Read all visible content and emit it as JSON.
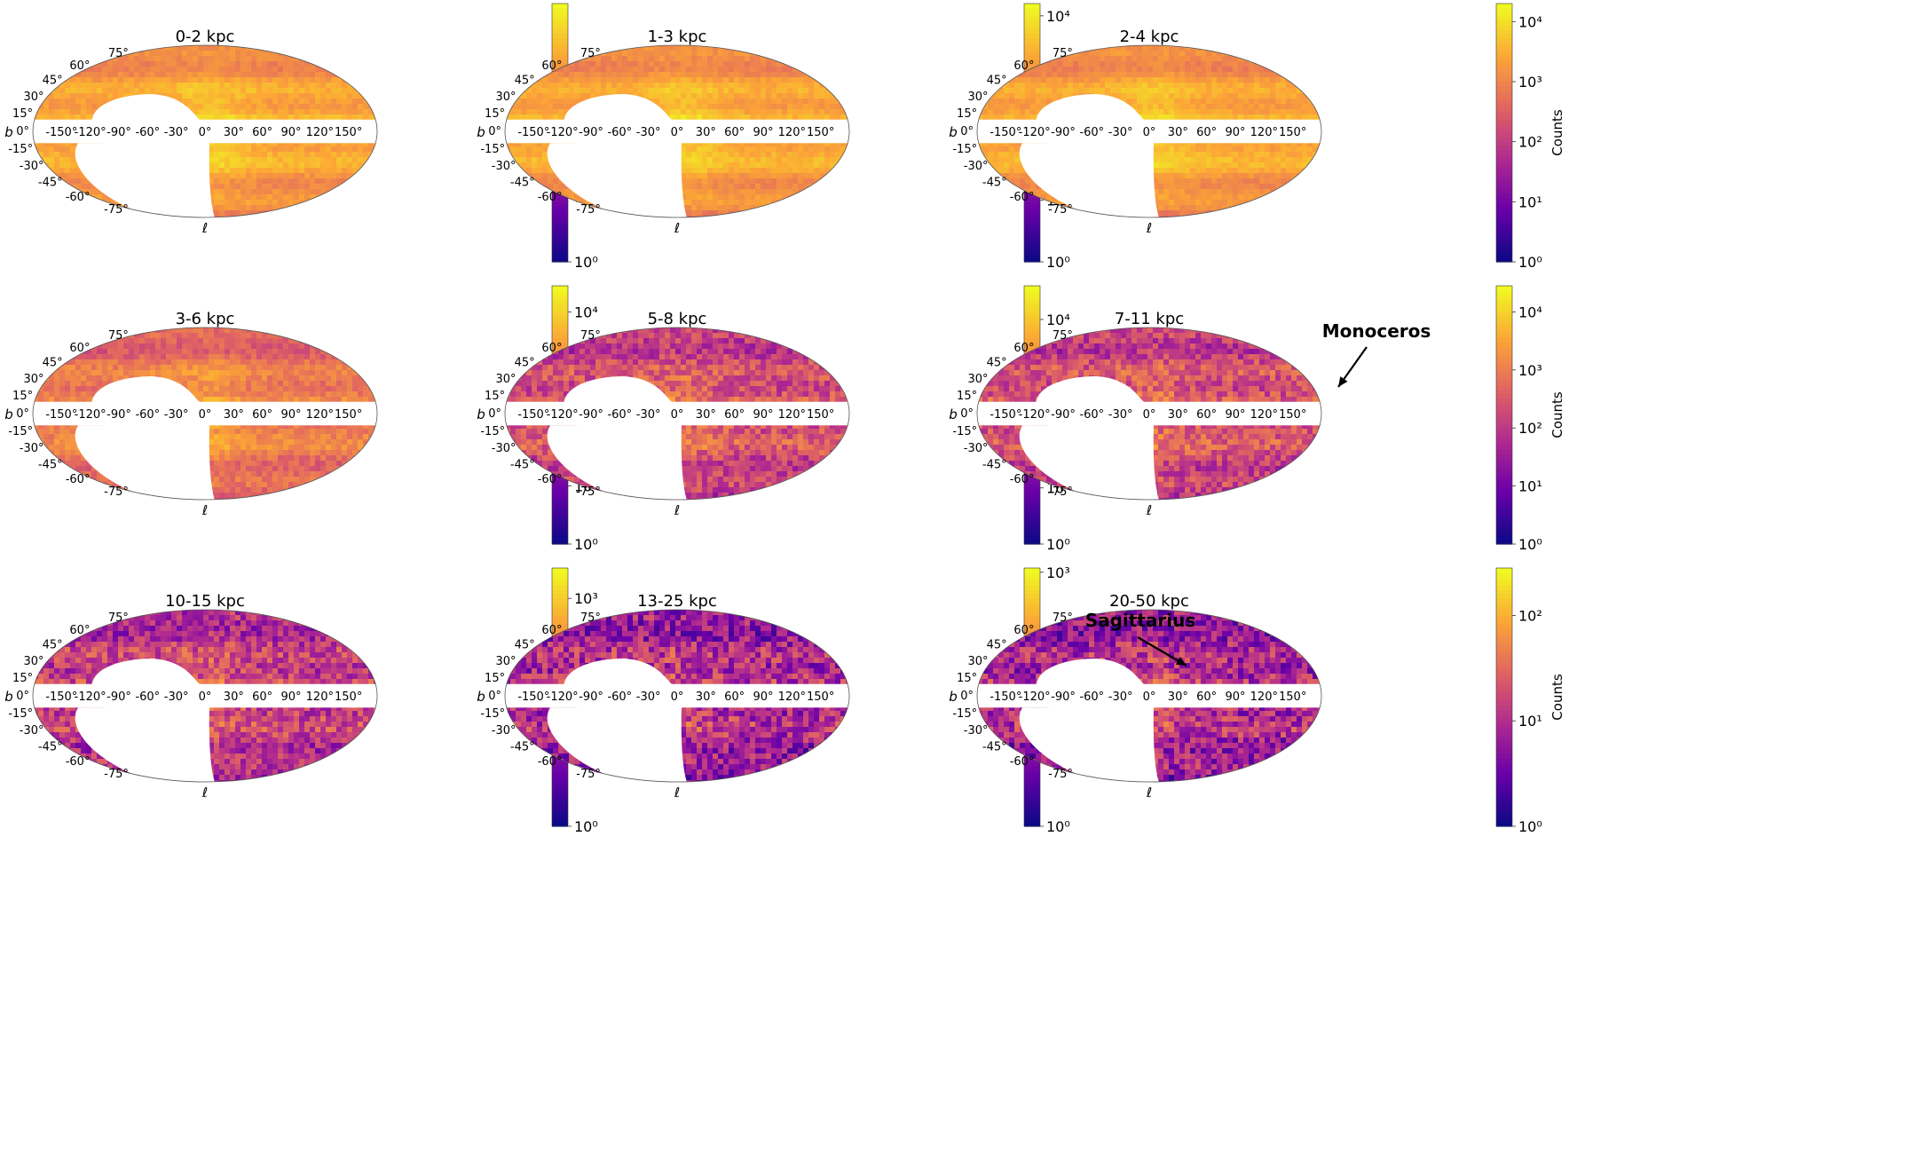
{
  "figure": {
    "colormap": [
      "#0d0887",
      "#6a00a8",
      "#b12a90",
      "#e16462",
      "#fca636",
      "#f0f921"
    ],
    "colorbar_label": "Counts",
    "lon_labels": [
      "-150°",
      "-120°",
      "-90°",
      "-60°",
      "-30°",
      "0°",
      "30°",
      "60°",
      "90°",
      "120°",
      "150°"
    ],
    "lat_labels": [
      "75°",
      "60°",
      "45°",
      "30°",
      "15°",
      "0°",
      "-15°",
      "-30°",
      "-45°",
      "-60°",
      "-75°"
    ],
    "xlabel": "ℓ",
    "ylabel": "b"
  },
  "chart_data": [
    {
      "type": "heatmap",
      "title": "0-2 kpc",
      "projection": "mollweide",
      "log_scale": true,
      "cbar_min_exp": 0,
      "cbar_max_exp": 3.95,
      "cbar_tick_exps": [
        0,
        1,
        2,
        3
      ],
      "cbar_ticks": [
        "10⁰",
        "10¹",
        "10²",
        "10³"
      ],
      "masked_band_deg": [
        -10,
        10
      ],
      "dominant_level": "high",
      "annotation": null
    },
    {
      "type": "heatmap",
      "title": "1-3 kpc",
      "projection": "mollweide",
      "log_scale": true,
      "cbar_min_exp": 0,
      "cbar_max_exp": 4.2,
      "cbar_tick_exps": [
        0,
        1,
        2,
        3,
        4
      ],
      "cbar_ticks": [
        "10⁰",
        "10¹",
        "10²",
        "10³",
        "10⁴"
      ],
      "masked_band_deg": [
        -10,
        10
      ],
      "dominant_level": "high",
      "annotation": null
    },
    {
      "type": "heatmap",
      "title": "2-4 kpc",
      "projection": "mollweide",
      "log_scale": true,
      "cbar_min_exp": 0,
      "cbar_max_exp": 4.3,
      "cbar_tick_exps": [
        0,
        1,
        2,
        3,
        4
      ],
      "cbar_ticks": [
        "10⁰",
        "10¹",
        "10²",
        "10³",
        "10⁴"
      ],
      "masked_band_deg": [
        -10,
        10
      ],
      "dominant_level": "high",
      "annotation": null
    },
    {
      "type": "heatmap",
      "title": "3-6 kpc",
      "projection": "mollweide",
      "log_scale": true,
      "cbar_min_exp": 0,
      "cbar_max_exp": 4.45,
      "cbar_tick_exps": [
        0,
        1,
        2,
        3,
        4
      ],
      "cbar_ticks": [
        "10⁰",
        "10¹",
        "10²",
        "10³",
        "10⁴"
      ],
      "masked_band_deg": [
        -10,
        10
      ],
      "dominant_level": "mid-high",
      "annotation": null
    },
    {
      "type": "heatmap",
      "title": "5-8 kpc",
      "projection": "mollweide",
      "log_scale": true,
      "cbar_min_exp": 0,
      "cbar_max_exp": 4.6,
      "cbar_tick_exps": [
        0,
        1,
        2,
        3,
        4
      ],
      "cbar_ticks": [
        "10⁰",
        "10¹",
        "10²",
        "10³",
        "10⁴"
      ],
      "masked_band_deg": [
        -10,
        10
      ],
      "dominant_level": "mid",
      "annotation": null
    },
    {
      "type": "heatmap",
      "title": "7-11 kpc",
      "projection": "mollweide",
      "log_scale": true,
      "cbar_min_exp": 0,
      "cbar_max_exp": 4.45,
      "cbar_tick_exps": [
        0,
        1,
        2,
        3,
        4
      ],
      "cbar_ticks": [
        "10⁰",
        "10¹",
        "10²",
        "10³",
        "10⁴"
      ],
      "masked_band_deg": [
        -10,
        10
      ],
      "dominant_level": "mid",
      "annotation": {
        "text": "Monoceros"
      }
    },
    {
      "type": "heatmap",
      "title": "10-15 kpc",
      "projection": "mollweide",
      "log_scale": true,
      "cbar_min_exp": 0,
      "cbar_max_exp": 3.4,
      "cbar_tick_exps": [
        0,
        1,
        2,
        3
      ],
      "cbar_ticks": [
        "10⁰",
        "10¹",
        "10²",
        "10³"
      ],
      "masked_band_deg": [
        -10,
        10
      ],
      "dominant_level": "mid-low",
      "annotation": null
    },
    {
      "type": "heatmap",
      "title": "13-25 kpc",
      "projection": "mollweide",
      "log_scale": true,
      "cbar_min_exp": 0,
      "cbar_max_exp": 3.05,
      "cbar_tick_exps": [
        0,
        1,
        2,
        3
      ],
      "cbar_ticks": [
        "10⁰",
        "10¹",
        "10²",
        "10³"
      ],
      "masked_band_deg": [
        -10,
        10
      ],
      "dominant_level": "low",
      "annotation": null
    },
    {
      "type": "heatmap",
      "title": "20-50 kpc",
      "projection": "mollweide",
      "log_scale": true,
      "cbar_min_exp": 0,
      "cbar_max_exp": 2.45,
      "cbar_tick_exps": [
        0,
        1,
        2
      ],
      "cbar_ticks": [
        "10⁰",
        "10¹",
        "10²"
      ],
      "masked_band_deg": [
        -10,
        10
      ],
      "dominant_level": "low",
      "annotation": {
        "text": "Sagittarius"
      }
    }
  ]
}
